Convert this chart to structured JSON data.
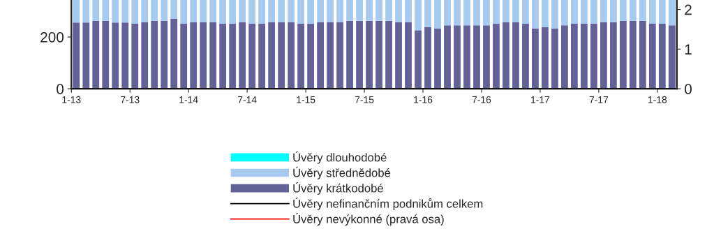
{
  "chart_data": {
    "type": "bar",
    "stacked": true,
    "categories": [
      "1-13",
      null,
      null,
      null,
      null,
      null,
      "7-13",
      null,
      null,
      null,
      null,
      null,
      "1-14",
      null,
      null,
      null,
      null,
      null,
      "7-14",
      null,
      null,
      null,
      null,
      null,
      "1-15",
      null,
      null,
      null,
      null,
      null,
      "7-15",
      null,
      null,
      null,
      null,
      null,
      "1-16",
      null,
      null,
      null,
      null,
      null,
      "7-16",
      null,
      null,
      null,
      null,
      null,
      "1-17",
      null,
      null,
      null,
      null,
      null,
      "7-17",
      null,
      null,
      null,
      null,
      null,
      "1-18",
      null
    ],
    "series": [
      {
        "name": "Úvěry krátkodobé",
        "color": "#626299",
        "values": [
          256,
          256,
          263,
          263,
          256,
          256,
          251,
          257,
          263,
          263,
          270,
          251,
          257,
          257,
          257,
          251,
          251,
          257,
          251,
          251,
          257,
          257,
          257,
          251,
          251,
          257,
          257,
          257,
          263,
          263,
          263,
          263,
          263,
          257,
          257,
          226,
          238,
          233,
          245,
          245,
          245,
          245,
          245,
          251,
          257,
          257,
          251,
          233,
          238,
          233,
          245,
          251,
          251,
          251,
          257,
          257,
          263,
          263,
          263,
          251,
          251,
          245
        ]
      },
      {
        "name": "Úvěry střednědobé",
        "color": "#a6caf0",
        "values": [
          87,
          87,
          80,
          80,
          87,
          87,
          92,
          86,
          80,
          80,
          73,
          92,
          86,
          86,
          86,
          92,
          92,
          86,
          92,
          92,
          86,
          86,
          86,
          92,
          92,
          86,
          86,
          86,
          80,
          80,
          80,
          80,
          80,
          86,
          86,
          117,
          105,
          110,
          98,
          98,
          98,
          98,
          98,
          92,
          86,
          86,
          92,
          110,
          105,
          110,
          98,
          92,
          92,
          92,
          86,
          86,
          80,
          80,
          80,
          92,
          92,
          98
        ]
      },
      {
        "name": "Úvěry dlouhodobé",
        "color": "#00ffff",
        "values": [
          null,
          null,
          null,
          null,
          null,
          null,
          null,
          null,
          null,
          null,
          null,
          null,
          null,
          null,
          null,
          null,
          null,
          null,
          null,
          null,
          null,
          null,
          null,
          null,
          null,
          null,
          null,
          null,
          null,
          null,
          null,
          null,
          null,
          null,
          null,
          null,
          null,
          null,
          null,
          null,
          null,
          null,
          null,
          null,
          null,
          null,
          null,
          null,
          null,
          null,
          null,
          null,
          null,
          null,
          null,
          null,
          null,
          null,
          null,
          null,
          null,
          null
        ]
      },
      {
        "name": "Úvěry nefinančním podnikům celkem",
        "type": "line",
        "color": "#000000",
        "values": [
          null,
          null,
          null,
          null,
          null,
          null,
          null,
          null,
          null,
          null,
          null,
          null,
          null,
          null,
          null,
          null,
          null,
          null,
          null,
          null,
          null,
          null,
          null,
          null,
          null,
          null,
          null,
          null,
          null,
          null,
          null,
          null,
          null,
          null,
          null,
          null,
          null,
          null,
          null,
          null,
          null,
          null,
          null,
          null,
          null,
          null,
          null,
          null,
          null,
          null,
          null,
          null,
          null,
          null,
          null,
          null,
          null,
          null,
          null,
          null,
          null,
          null
        ]
      },
      {
        "name": "Úvěry nevýkonné (pravá osa)",
        "type": "line",
        "axis": "y2",
        "color": "#ff0000",
        "values": [
          null,
          null,
          null,
          null,
          null,
          null,
          null,
          null,
          null,
          null,
          null,
          null,
          null,
          null,
          null,
          null,
          null,
          null,
          null,
          null,
          null,
          null,
          null,
          null,
          null,
          null,
          null,
          null,
          null,
          null,
          null,
          null,
          null,
          null,
          null,
          null,
          null,
          null,
          null,
          null,
          null,
          null,
          null,
          null,
          null,
          null,
          null,
          null,
          null,
          null,
          null,
          null,
          null,
          null,
          null,
          null,
          null,
          null,
          null,
          null,
          null,
          null
        ]
      }
    ],
    "ylim": [
      0,
      343
    ],
    "yticks": [
      0,
      200
    ],
    "y2lim": [
      0,
      2.24
    ],
    "y2ticks": [
      0,
      1,
      2
    ],
    "legend": "bottom",
    "grid": false
  }
}
